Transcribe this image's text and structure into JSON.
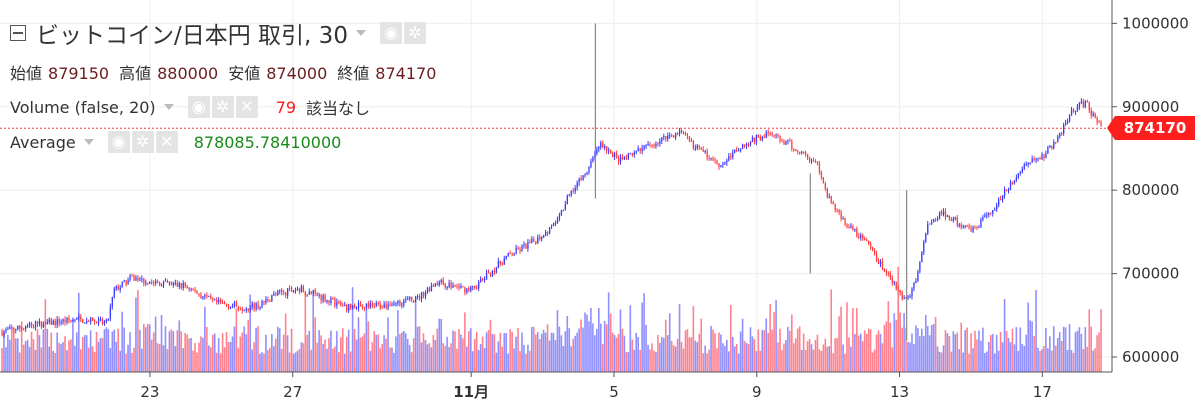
{
  "legend": {
    "symbol": "ビットコイン/日本円 取引, 30",
    "ohlc": [
      {
        "label": "始値",
        "value": "879150"
      },
      {
        "label": "高値",
        "value": "880000"
      },
      {
        "label": "安値",
        "value": "874000"
      },
      {
        "label": "終値",
        "value": "874170"
      }
    ],
    "volume": {
      "name": "Volume (false, 20)",
      "value": "79",
      "note": "該当なし"
    },
    "average": {
      "name": "Average",
      "value": "878085.78410000"
    },
    "icons": {
      "eye": "◉",
      "gear": "✲",
      "close": "✕"
    }
  },
  "price_tag": "874170",
  "colors": {
    "up": "#3b3bff",
    "down": "#ff3b3b",
    "volume_up": "#7b7bff",
    "volume_down": "#ff6b7a",
    "last_line": "#ff3b3b",
    "axis": "#555555"
  },
  "chart_data": {
    "type": "candlestick",
    "interval": "30",
    "ylim": [
      582000,
      1028000
    ],
    "yticks": [
      "1000000",
      "900000",
      "800000",
      "700000",
      "600000"
    ],
    "ytick_values": [
      1000000,
      900000,
      800000,
      700000,
      600000
    ],
    "xticks": [
      "23",
      "27",
      "11月",
      "5",
      "9",
      "13",
      "17"
    ],
    "xtick_days": [
      3,
      7,
      12,
      16,
      20,
      24,
      28
    ],
    "x_domain_days": [
      -1.2,
      29.7
    ],
    "last_close": 874170,
    "price_path": [
      [
        -1.2,
        630000
      ],
      [
        0.0,
        640000
      ],
      [
        1.0,
        645000
      ],
      [
        1.8,
        640000
      ],
      [
        2.0,
        680000
      ],
      [
        2.5,
        695000
      ],
      [
        3.0,
        690000
      ],
      [
        4.0,
        685000
      ],
      [
        4.8,
        665000
      ],
      [
        5.6,
        660000
      ],
      [
        6.0,
        660000
      ],
      [
        6.5,
        675000
      ],
      [
        7.2,
        682000
      ],
      [
        7.8,
        672000
      ],
      [
        8.5,
        660000
      ],
      [
        9.5,
        662000
      ],
      [
        10.5,
        670000
      ],
      [
        11.0,
        690000
      ],
      [
        11.5,
        685000
      ],
      [
        12.0,
        680000
      ],
      [
        13.0,
        720000
      ],
      [
        13.8,
        740000
      ],
      [
        14.4,
        760000
      ],
      [
        14.8,
        800000
      ],
      [
        15.2,
        820000
      ],
      [
        15.6,
        855000
      ],
      [
        16.2,
        835000
      ],
      [
        17.2,
        858000
      ],
      [
        17.8,
        870000
      ],
      [
        18.5,
        845000
      ],
      [
        19.0,
        830000
      ],
      [
        19.6,
        855000
      ],
      [
        20.3,
        868000
      ],
      [
        21.2,
        848000
      ],
      [
        21.7,
        832000
      ],
      [
        22.0,
        790000
      ],
      [
        22.5,
        760000
      ],
      [
        23.0,
        740000
      ],
      [
        23.4,
        715000
      ],
      [
        23.8,
        690000
      ],
      [
        24.2,
        665000
      ],
      [
        24.5,
        700000
      ],
      [
        24.8,
        760000
      ],
      [
        25.2,
        775000
      ],
      [
        25.6,
        762000
      ],
      [
        26.0,
        750000
      ],
      [
        26.5,
        770000
      ],
      [
        27.0,
        800000
      ],
      [
        27.5,
        830000
      ],
      [
        28.0,
        840000
      ],
      [
        28.4,
        860000
      ],
      [
        28.8,
        895000
      ],
      [
        29.2,
        905000
      ],
      [
        29.5,
        885000
      ],
      [
        29.7,
        874170
      ]
    ],
    "spikes": [
      {
        "day": 15.48,
        "high": 1000000,
        "low": 790000
      },
      {
        "day": 21.5,
        "high": 820000,
        "low": 700000
      },
      {
        "day": 24.2,
        "high": 800000,
        "low": 620000
      }
    ],
    "volume_range": [
      0,
      120
    ]
  }
}
